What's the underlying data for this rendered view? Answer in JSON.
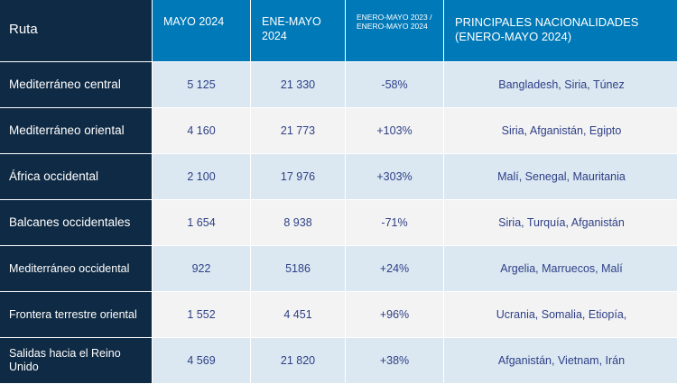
{
  "headers": {
    "route": "Ruta",
    "month": "MAYO 2024",
    "jan_may": "ENE-MAYO 2024",
    "change": "ENERO-MAYO 2023 / ENERO-MAYO 2024",
    "nationalities": "PRINCIPALES NACIONALIDADES (ENERO-MAYO 2024)"
  },
  "rows": [
    {
      "route": "Mediterráneo central",
      "month": "5 125",
      "jan_may": "21 330",
      "change": "-58%",
      "nationalities": "Bangladesh, Siria, Túnez"
    },
    {
      "route": "Mediterráneo oriental",
      "month": "4 160",
      "jan_may": "21 773",
      "change": "+103%",
      "nationalities": "Siria, Afganistán, Egipto"
    },
    {
      "route": "África occidental",
      "month": "2 100",
      "jan_may": "17 976",
      "change": "+303%",
      "nationalities": "Malí, Senegal, Mauritania"
    },
    {
      "route": "Balcanes occidentales",
      "month": "1 654",
      "jan_may": "8 938",
      "change": "-71%",
      "nationalities": "Siria, Turquía, Afganistán"
    },
    {
      "route": "Mediterráneo occidental",
      "month": "922",
      "jan_may": "5186",
      "change": "+24%",
      "nationalities": "Argelia, Marruecos, Malí"
    },
    {
      "route": "Frontera terrestre oriental",
      "month": "1 552",
      "jan_may": "4 451",
      "change": "+96%",
      "nationalities": "Ucrania, Somalia, Etiopía,"
    },
    {
      "route": "Salidas hacia el Reino Unido",
      "month": "4 569",
      "jan_may": "21 820",
      "change": "+38%",
      "nationalities": "Afganistán, Vietnam, Irán"
    }
  ]
}
